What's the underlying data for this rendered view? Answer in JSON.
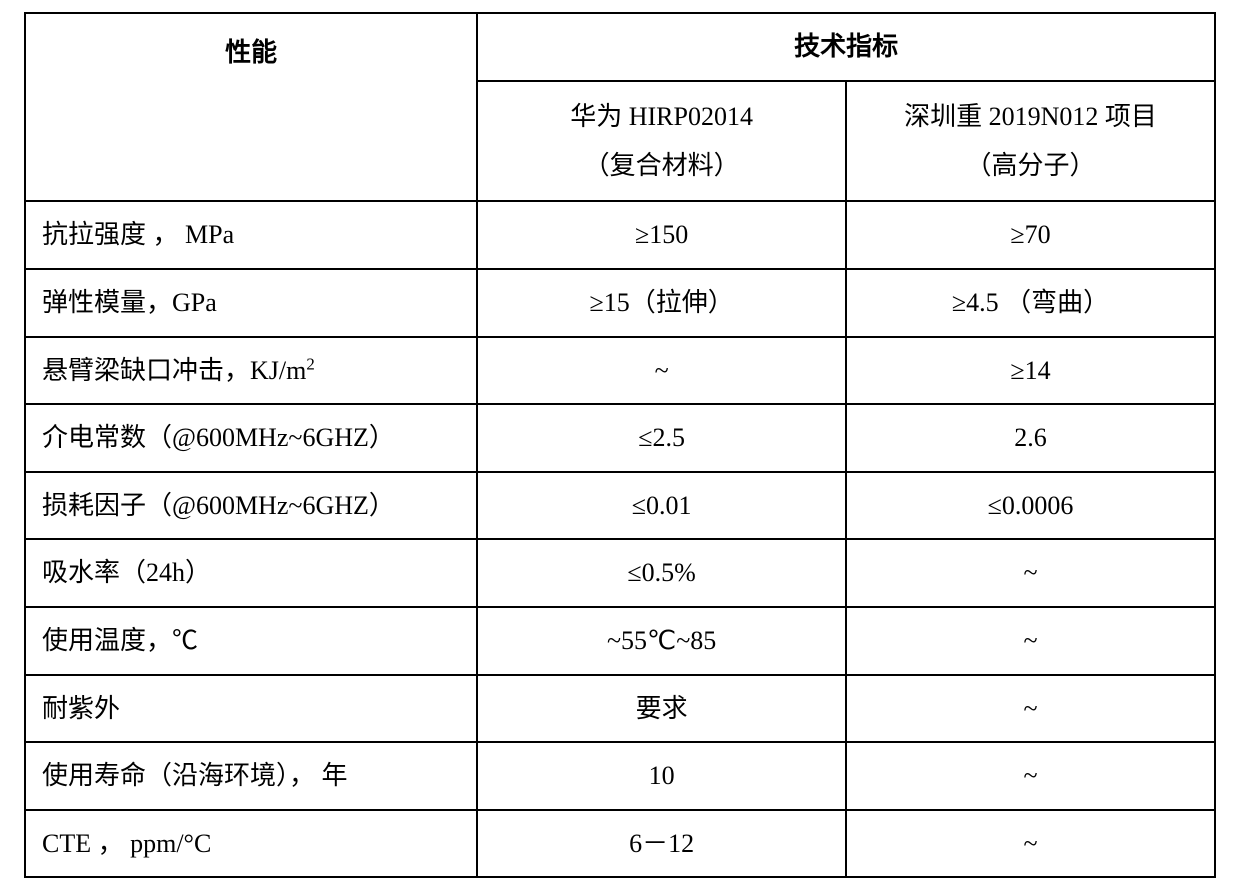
{
  "table": {
    "header": {
      "performance": "性能",
      "spec_group": "技术指标",
      "sub_col1_line1": "华为 HIRP02014",
      "sub_col1_line2": "（复合材料）",
      "sub_col2_line1": "深圳重 2019N012 项目",
      "sub_col2_line2": "（高分子）"
    },
    "rows": [
      {
        "label": "抗拉强度 ， MPa",
        "col1": "≥150",
        "col2": "≥70"
      },
      {
        "label": "弹性模量，GPa",
        "col1": "≥15（拉伸）",
        "col2": "≥4.5 （弯曲）"
      },
      {
        "label": "悬臂梁缺口冲击，KJ/m²",
        "col1": "~",
        "col2": "≥14"
      },
      {
        "label": "介电常数（@600MHz~6GHZ）",
        "col1": "≤2.5",
        "col2": "2.6"
      },
      {
        "label": "损耗因子（@600MHz~6GHZ）",
        "col1": "≤0.01",
        "col2": "≤0.0006"
      },
      {
        "label": "吸水率（24h）",
        "col1": "≤0.5%",
        "col2": "~"
      },
      {
        "label": "使用温度，℃",
        "col1": "~55℃~85",
        "col2": "~"
      },
      {
        "label": "耐紫外",
        "col1": "要求",
        "col2": "~"
      },
      {
        "label": "使用寿命（沿海环境）， 年",
        "col1": "10",
        "col2": "~"
      },
      {
        "label": "CTE ， ppm/°C",
        "col1": "6－12",
        "col2": "~"
      }
    ],
    "styling": {
      "border_color": "#000000",
      "border_width": 2,
      "background_color": "#ffffff",
      "text_color": "#000000",
      "font_family": "SimSun",
      "header_font_weight": "bold",
      "body_font_size": 26,
      "row_height_approx": 64
    }
  }
}
